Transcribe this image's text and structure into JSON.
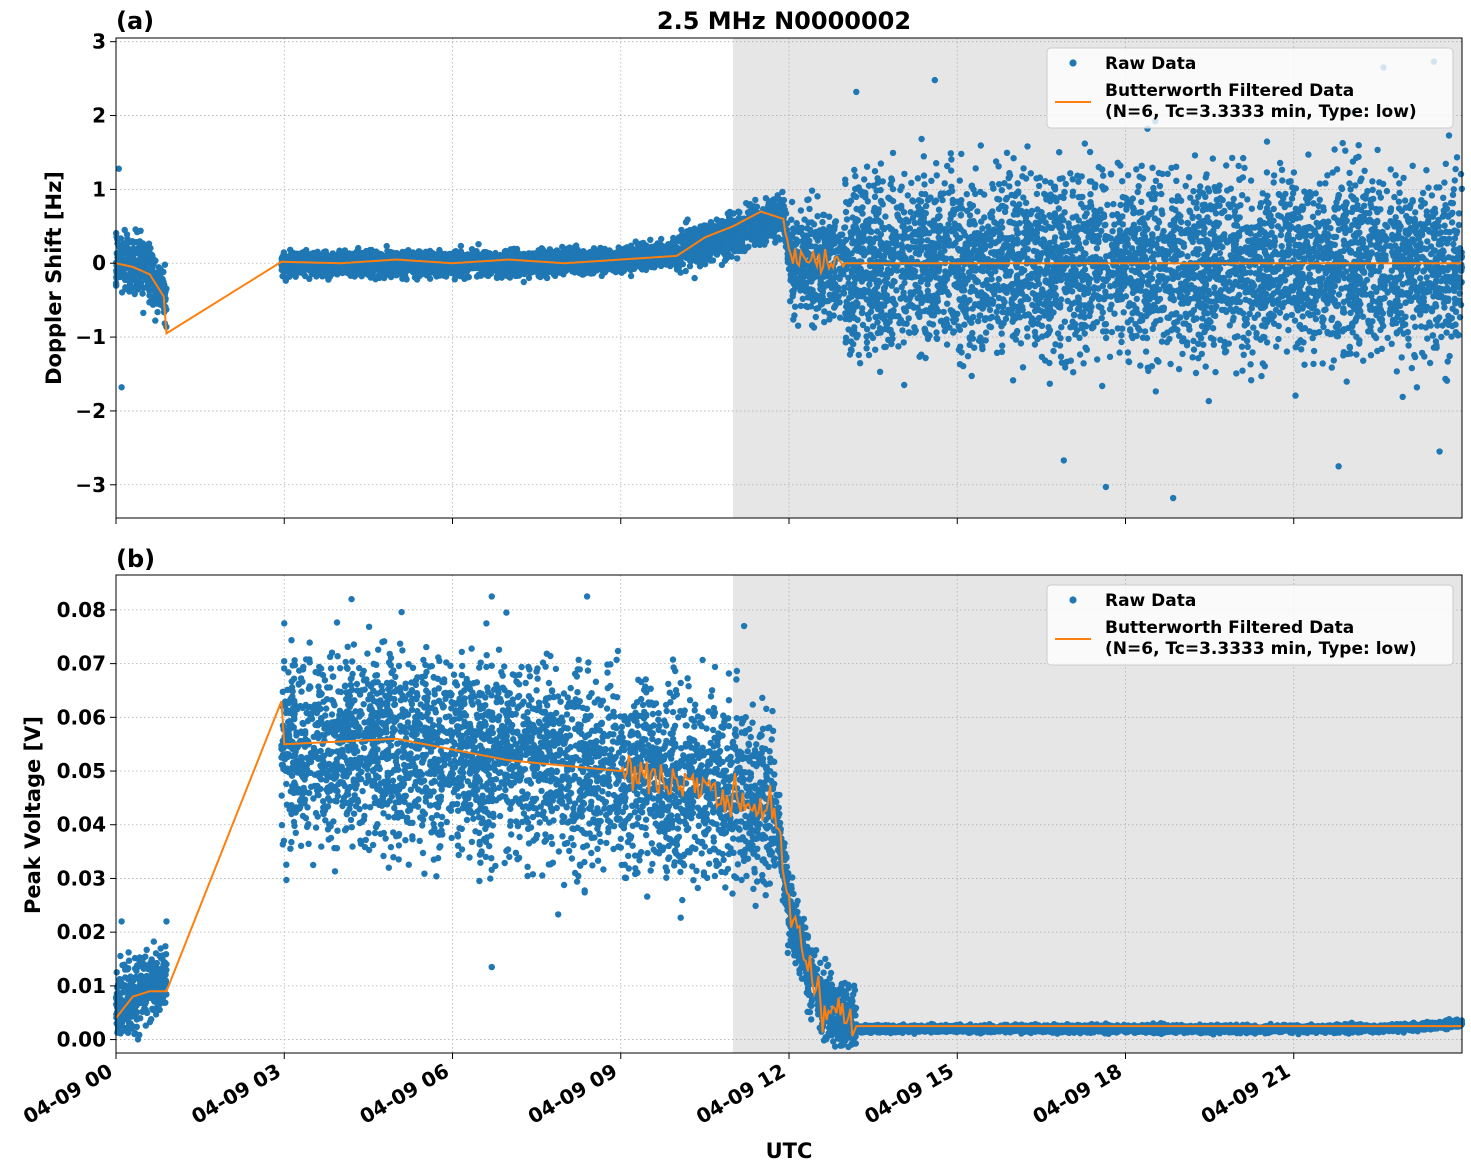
{
  "figure": {
    "title": "2.5 MHz N0000002",
    "xlabel": "UTC"
  },
  "colors": {
    "raw": "#1f77b4",
    "filtered": "#ff7f0e",
    "shade": "#e6e6e6",
    "grid": "#b0b0b0"
  },
  "chart_data": [
    {
      "type": "scatter",
      "panel_label": "(a)",
      "title": "2.5 MHz N0000002",
      "xlabel": "",
      "ylabel": "Doppler Shift [Hz]",
      "xlim": [
        0,
        24
      ],
      "ylim": [
        -3.45,
        3.05
      ],
      "x_unit": "hours UTC on 04-09",
      "x_ticks": [
        0,
        3,
        6,
        9,
        12,
        15,
        18,
        21
      ],
      "y_ticks": [
        -3,
        -2,
        -1,
        0,
        1,
        2,
        3
      ],
      "y_tick_labels": [
        "−3",
        "−2",
        "−1",
        "0",
        "1",
        "2",
        "3"
      ],
      "grid": true,
      "legend_position": "top-right",
      "shaded_region": [
        11.0,
        24
      ],
      "series": [
        {
          "name": "Raw Data",
          "kind": "points",
          "segments": [
            {
              "x_range": [
                0.0,
                0.9
              ],
              "center": [
                [
                  0.0,
                  0.05
                ],
                [
                  0.5,
                  -0.05
                ],
                [
                  0.9,
                  -0.5
                ]
              ],
              "spread": 0.75
            },
            {
              "x_range": [
                2.95,
                10.0
              ],
              "center": [
                [
                  3.0,
                  0.0
                ],
                [
                  5.0,
                  0.0
                ],
                [
                  7.0,
                  0.0
                ],
                [
                  9.0,
                  0.05
                ],
                [
                  10.0,
                  0.15
                ]
              ],
              "spread": 0.3
            },
            {
              "x_range": [
                10.0,
                12.0
              ],
              "center": [
                [
                  10.0,
                  0.15
                ],
                [
                  11.0,
                  0.4
                ],
                [
                  11.9,
                  0.65
                ],
                [
                  12.0,
                  0.1
                ]
              ],
              "spread": 0.5
            },
            {
              "x_range": [
                12.0,
                13.0
              ],
              "center": [
                [
                  12.0,
                  0.0
                ],
                [
                  13.0,
                  0.0
                ]
              ],
              "spread": 1.2
            },
            {
              "x_range": [
                13.0,
                24.0
              ],
              "center": [
                [
                  13.0,
                  0.0
                ],
                [
                  24.0,
                  0.0
                ]
              ],
              "spread": 2.2
            }
          ],
          "outliers": [
            [
              0.05,
              1.28
            ],
            [
              0.1,
              -1.68
            ],
            [
              13.2,
              2.32
            ],
            [
              14.6,
              2.48
            ],
            [
              16.9,
              -2.67
            ],
            [
              17.65,
              -3.03
            ],
            [
              18.85,
              -3.18
            ],
            [
              22.6,
              2.65
            ],
            [
              23.5,
              2.73
            ],
            [
              23.6,
              -2.55
            ],
            [
              21.8,
              -2.75
            ]
          ]
        },
        {
          "name": "Butterworth Filtered Data\n(N=6, Tc=3.3333 min, Type: low)",
          "kind": "line",
          "points": [
            [
              0.0,
              0.0
            ],
            [
              0.3,
              -0.05
            ],
            [
              0.6,
              -0.15
            ],
            [
              0.85,
              -0.45
            ],
            [
              0.9,
              -0.95
            ],
            [
              2.95,
              0.02
            ],
            [
              4.0,
              0.0
            ],
            [
              5.0,
              0.05
            ],
            [
              6.0,
              0.0
            ],
            [
              7.0,
              0.05
            ],
            [
              8.0,
              0.0
            ],
            [
              9.0,
              0.05
            ],
            [
              10.0,
              0.1
            ],
            [
              10.5,
              0.35
            ],
            [
              11.0,
              0.5
            ],
            [
              11.5,
              0.7
            ],
            [
              11.9,
              0.6
            ],
            [
              12.0,
              0.05
            ],
            [
              13.0,
              0.0
            ],
            [
              24.0,
              0.0
            ]
          ],
          "noise": [
            [
              11.95,
              24.0,
              0.3
            ]
          ]
        }
      ]
    },
    {
      "type": "scatter",
      "panel_label": "(b)",
      "xlabel": "UTC",
      "ylabel": "Peak Voltage [V]",
      "xlim": [
        0,
        24
      ],
      "ylim": [
        -0.0025,
        0.0865
      ],
      "x_ticks": [
        0,
        3,
        6,
        9,
        12,
        15,
        18,
        21
      ],
      "x_tick_labels": [
        "04-09 00",
        "04-09 03",
        "04-09 06",
        "04-09 09",
        "04-09 12",
        "04-09 15",
        "04-09 18",
        "04-09 21"
      ],
      "y_ticks": [
        0.0,
        0.01,
        0.02,
        0.03,
        0.04,
        0.05,
        0.06,
        0.07,
        0.08
      ],
      "y_tick_labels": [
        "0.00",
        "0.01",
        "0.02",
        "0.03",
        "0.04",
        "0.05",
        "0.06",
        "0.07",
        "0.08"
      ],
      "grid": true,
      "legend_position": "top-right",
      "shaded_region": [
        11.0,
        24
      ],
      "series": [
        {
          "name": "Raw Data",
          "kind": "points",
          "segments": [
            {
              "x_range": [
                0.0,
                0.9
              ],
              "center": [
                [
                  0.0,
                  0.007
                ],
                [
                  0.5,
                  0.009
                ],
                [
                  0.9,
                  0.012
                ]
              ],
              "spread": 0.012
            },
            {
              "x_range": [
                2.95,
                11.0
              ],
              "center": [
                [
                  3.0,
                  0.055
                ],
                [
                  5.0,
                  0.055
                ],
                [
                  7.0,
                  0.052
                ],
                [
                  9.0,
                  0.05
                ],
                [
                  11.0,
                  0.047
                ]
              ],
              "spread": 0.032
            },
            {
              "x_range": [
                11.0,
                11.75
              ],
              "center": [
                [
                  11.0,
                  0.047
                ],
                [
                  11.75,
                  0.043
                ]
              ],
              "spread": 0.028
            },
            {
              "x_range": [
                11.75,
                13.2
              ],
              "center": [
                [
                  11.75,
                  0.043
                ],
                [
                  12.0,
                  0.025
                ],
                [
                  12.3,
                  0.015
                ],
                [
                  12.6,
                  0.007
                ],
                [
                  13.2,
                  0.003
                ]
              ],
              "spread": 0.012
            },
            {
              "x_range": [
                13.2,
                24.0
              ],
              "center": [
                [
                  13.2,
                  0.002
                ],
                [
                  22.5,
                  0.002
                ],
                [
                  24.0,
                  0.003
                ]
              ],
              "spread": 0.0012
            }
          ],
          "outliers": [
            [
              0.1,
              0.022
            ],
            [
              0.9,
              0.022
            ],
            [
              3.0,
              0.0775
            ],
            [
              4.2,
              0.082
            ],
            [
              6.7,
              0.0825
            ],
            [
              8.4,
              0.0825
            ],
            [
              6.7,
              0.0135
            ],
            [
              11.2,
              0.077
            ]
          ]
        },
        {
          "name": "Butterworth Filtered Data\n(N=6, Tc=3.3333 min, Type: low)",
          "kind": "line",
          "points": [
            [
              0.0,
              0.004
            ],
            [
              0.3,
              0.008
            ],
            [
              0.6,
              0.009
            ],
            [
              0.9,
              0.009
            ],
            [
              2.95,
              0.063
            ],
            [
              3.0,
              0.055
            ],
            [
              5.0,
              0.056
            ],
            [
              7.0,
              0.052
            ],
            [
              9.0,
              0.05
            ],
            [
              10.5,
              0.047
            ],
            [
              11.0,
              0.045
            ],
            [
              11.7,
              0.043
            ],
            [
              12.0,
              0.025
            ],
            [
              12.3,
              0.015
            ],
            [
              12.6,
              0.007
            ],
            [
              13.2,
              0.0025
            ],
            [
              24.0,
              0.0025
            ]
          ],
          "noise": [
            [
              3.0,
              11.75,
              0.0065
            ],
            [
              11.75,
              13.2,
              0.006
            ],
            [
              13.2,
              24.0,
              0.0003
            ]
          ]
        }
      ]
    }
  ]
}
